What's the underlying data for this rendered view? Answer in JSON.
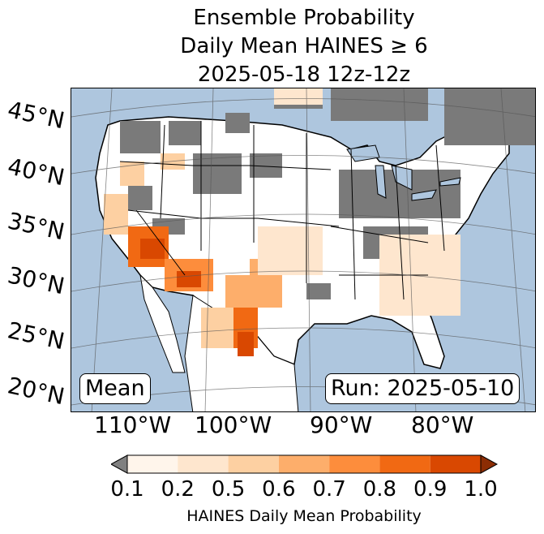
{
  "title": {
    "line1": "Ensemble Probability",
    "line2": "Daily Mean HAINES ≥ 6",
    "line3": "2025-05-18 12z-12z"
  },
  "map": {
    "ocean_color": "#aec6de",
    "land_low_color": "#ffffff",
    "no_data_color": "#7a7a7a",
    "lat_labels": [
      "45°N",
      "40°N",
      "35°N",
      "30°N",
      "25°N",
      "20°N"
    ],
    "lon_labels": [
      "110°W",
      "100°W",
      "90°W",
      "80°W"
    ]
  },
  "inset": {
    "stat_label": "Mean",
    "run_label": "Run: 2025-05-10"
  },
  "colorbar": {
    "label": "HAINES Daily Mean Probability",
    "ticks": [
      "0.1",
      "0.2",
      "0.5",
      "0.6",
      "0.7",
      "0.8",
      "0.9",
      "1.0"
    ],
    "under_color": "#808080",
    "colors": [
      "#fff5eb",
      "#fee6ce",
      "#fdd0a2",
      "#fdae6b",
      "#fd8d3c",
      "#f16913",
      "#d94801"
    ],
    "over_color": "#8c2d04"
  }
}
